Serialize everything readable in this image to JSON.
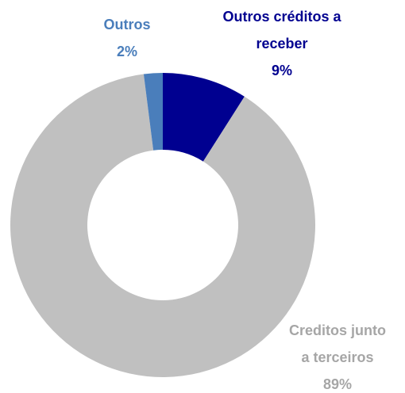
{
  "chart_data": {
    "type": "donut",
    "categories": [
      "Outros créditos a receber",
      "Creditos junto a terceiros",
      "Outros"
    ],
    "values": [
      9,
      89,
      2
    ],
    "value_labels": [
      "9%",
      "89%",
      "2%"
    ],
    "colors": [
      "#000090",
      "#c0c0c0",
      "#4a7ebb"
    ],
    "label_colors": [
      "#000090",
      "#a6a6a6",
      "#4a7ebb"
    ]
  }
}
